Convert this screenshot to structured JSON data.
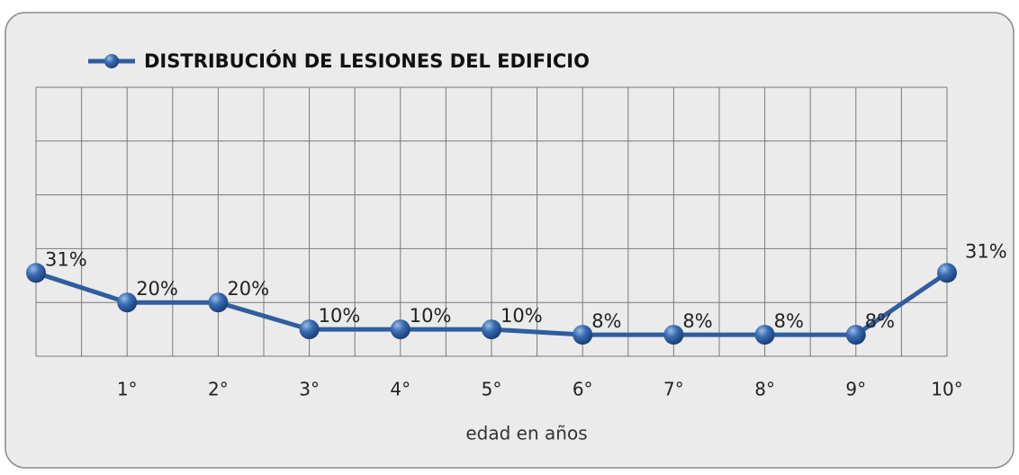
{
  "chart_data": {
    "type": "line",
    "categories": [
      null,
      "1°",
      "2°",
      "3°",
      "4°",
      "5°",
      "6°",
      "7°",
      "8°",
      "9°",
      "10°"
    ],
    "series": [
      {
        "name": "DISTRIBUCIÓN DE LESIONES DEL EDIFICIO",
        "color": "#2f5e9e",
        "values": [
          31,
          20,
          20,
          10,
          10,
          10,
          8,
          8,
          8,
          8,
          31
        ],
        "value_labels": [
          "31%",
          "20%",
          "20%",
          "10%",
          "10%",
          "10%",
          "8%",
          "8%",
          "8%",
          "8%",
          "31%"
        ]
      }
    ],
    "x_label": "edad en años",
    "ylim": [
      0,
      100
    ],
    "yticks": [
      0,
      20,
      40,
      60,
      80,
      100
    ],
    "grid": true,
    "legend": "top"
  }
}
